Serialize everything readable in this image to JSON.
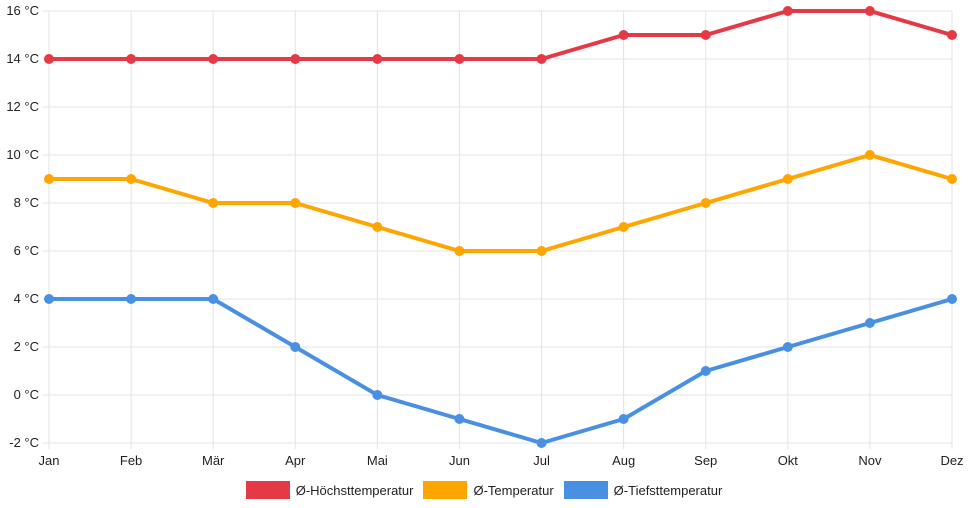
{
  "chart_data": {
    "type": "line",
    "categories": [
      "Jan",
      "Feb",
      "Mär",
      "Apr",
      "Mai",
      "Jun",
      "Jul",
      "Aug",
      "Sep",
      "Okt",
      "Nov",
      "Dez"
    ],
    "ylim": [
      -2,
      16
    ],
    "yticks": [
      -2,
      0,
      2,
      4,
      6,
      8,
      10,
      12,
      14,
      16
    ],
    "ytick_suffix": " °C",
    "grid": true,
    "legend_position": "bottom",
    "series": [
      {
        "name": "Ø-Höchsttemperatur",
        "color": "#e63946",
        "values": [
          14,
          14,
          14,
          14,
          14,
          14,
          14,
          15,
          15,
          16,
          16,
          15
        ]
      },
      {
        "name": "Ø-Temperatur",
        "color": "#ffa500",
        "values": [
          9,
          9,
          8,
          8,
          7,
          6,
          6,
          7,
          8,
          9,
          10,
          9
        ]
      },
      {
        "name": "Ø-Tiefsttemperatur",
        "color": "#4a90e2",
        "values": [
          4,
          4,
          4,
          2,
          0,
          -1,
          -2,
          -1,
          1,
          2,
          3,
          4
        ]
      }
    ]
  }
}
